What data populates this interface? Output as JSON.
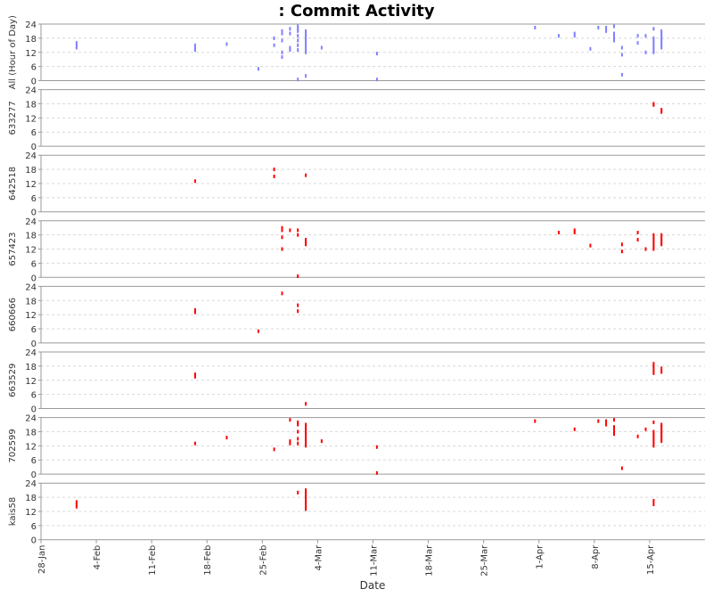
{
  "chart_data": {
    "type": "scatter",
    "title": ": Commit Activity",
    "xlabel": "Date",
    "ylim": [
      0,
      24
    ],
    "y_ticks": [
      0,
      6,
      12,
      18,
      24
    ],
    "x_range": [
      "2013-01-28",
      "2013-04-22"
    ],
    "x_ticks": [
      "28-Jan",
      "4-Feb",
      "11-Feb",
      "18-Feb",
      "25-Feb",
      "4-Mar",
      "11-Mar",
      "18-Mar",
      "25-Mar",
      "1-Apr",
      "8-Apr",
      "15-Apr"
    ],
    "grid": true,
    "series": [
      {
        "name": "All (Hour of Day)",
        "color": "#8080ff",
        "points": [
          [
            "2013-02-01",
            15
          ],
          [
            "2013-02-01",
            14
          ],
          [
            "2013-02-01",
            16
          ],
          [
            "2013-02-16",
            13
          ],
          [
            "2013-02-16",
            14
          ],
          [
            "2013-02-16",
            15
          ],
          [
            "2013-02-20",
            15.5
          ],
          [
            "2013-02-24",
            5
          ],
          [
            "2013-02-26",
            15
          ],
          [
            "2013-02-26",
            18
          ],
          [
            "2013-02-27",
            10
          ],
          [
            "2013-02-27",
            12
          ],
          [
            "2013-02-27",
            17
          ],
          [
            "2013-02-27",
            20
          ],
          [
            "2013-02-27",
            21
          ],
          [
            "2013-02-28",
            13
          ],
          [
            "2013-02-28",
            14
          ],
          [
            "2013-02-28",
            20
          ],
          [
            "2013-02-28",
            22
          ],
          [
            "2013-03-01",
            0.5
          ],
          [
            "2013-03-01",
            13
          ],
          [
            "2013-03-01",
            15
          ],
          [
            "2013-03-01",
            17
          ],
          [
            "2013-03-01",
            19
          ],
          [
            "2013-03-01",
            21
          ],
          [
            "2013-03-01",
            22
          ],
          [
            "2013-03-01",
            23
          ],
          [
            "2013-03-02",
            2
          ],
          [
            "2013-03-02",
            12
          ],
          [
            "2013-03-02",
            13
          ],
          [
            "2013-03-02",
            14
          ],
          [
            "2013-03-02",
            15
          ],
          [
            "2013-03-02",
            16
          ],
          [
            "2013-03-02",
            17
          ],
          [
            "2013-03-02",
            18
          ],
          [
            "2013-03-02",
            19
          ],
          [
            "2013-03-02",
            20
          ],
          [
            "2013-03-02",
            21
          ],
          [
            "2013-03-04",
            14
          ],
          [
            "2013-03-11",
            11.5
          ],
          [
            "2013-03-11",
            0.5
          ],
          [
            "2013-03-31",
            22.5
          ],
          [
            "2013-04-03",
            19
          ],
          [
            "2013-04-05",
            19
          ],
          [
            "2013-04-05",
            20
          ],
          [
            "2013-04-07",
            13.5
          ],
          [
            "2013-04-08",
            22.5
          ],
          [
            "2013-04-09",
            21
          ],
          [
            "2013-04-09",
            22.5
          ],
          [
            "2013-04-10",
            17
          ],
          [
            "2013-04-10",
            18
          ],
          [
            "2013-04-10",
            19
          ],
          [
            "2013-04-10",
            20
          ],
          [
            "2013-04-10",
            23
          ],
          [
            "2013-04-11",
            2.5
          ],
          [
            "2013-04-11",
            11
          ],
          [
            "2013-04-11",
            14
          ],
          [
            "2013-04-13",
            16
          ],
          [
            "2013-04-13",
            19
          ],
          [
            "2013-04-14",
            12
          ],
          [
            "2013-04-14",
            19
          ],
          [
            "2013-04-15",
            12
          ],
          [
            "2013-04-15",
            13
          ],
          [
            "2013-04-15",
            14
          ],
          [
            "2013-04-15",
            15
          ],
          [
            "2013-04-15",
            16
          ],
          [
            "2013-04-15",
            17
          ],
          [
            "2013-04-15",
            18
          ],
          [
            "2013-04-15",
            22
          ],
          [
            "2013-04-16",
            14
          ],
          [
            "2013-04-16",
            15
          ],
          [
            "2013-04-16",
            16
          ],
          [
            "2013-04-16",
            17
          ],
          [
            "2013-04-16",
            18
          ],
          [
            "2013-04-16",
            19
          ],
          [
            "2013-04-16",
            20
          ],
          [
            "2013-04-16",
            21
          ]
        ]
      },
      {
        "name": "633277",
        "color": "#ff0000",
        "points": [
          [
            "2013-04-15",
            18
          ],
          [
            "2013-04-15",
            17.5
          ],
          [
            "2013-04-16",
            15.5
          ],
          [
            "2013-04-16",
            14.5
          ]
        ]
      },
      {
        "name": "642518",
        "color": "#ff0000",
        "points": [
          [
            "2013-02-16",
            13
          ],
          [
            "2013-02-26",
            18
          ],
          [
            "2013-02-26",
            15
          ],
          [
            "2013-03-02",
            15.5
          ]
        ]
      },
      {
        "name": "657423",
        "color": "#ff0000",
        "points": [
          [
            "2013-02-27",
            12
          ],
          [
            "2013-02-27",
            17
          ],
          [
            "2013-02-27",
            20
          ],
          [
            "2013-02-27",
            21
          ],
          [
            "2013-02-28",
            20
          ],
          [
            "2013-03-01",
            0.5
          ],
          [
            "2013-03-01",
            18
          ],
          [
            "2013-03-01",
            20
          ],
          [
            "2013-03-02",
            14
          ],
          [
            "2013-03-02",
            15
          ],
          [
            "2013-03-02",
            16
          ],
          [
            "2013-04-03",
            19
          ],
          [
            "2013-04-05",
            19
          ],
          [
            "2013-04-05",
            20
          ],
          [
            "2013-04-07",
            13.5
          ],
          [
            "2013-04-11",
            11
          ],
          [
            "2013-04-11",
            14
          ],
          [
            "2013-04-13",
            16
          ],
          [
            "2013-04-13",
            19
          ],
          [
            "2013-04-14",
            12
          ],
          [
            "2013-04-15",
            12
          ],
          [
            "2013-04-15",
            13
          ],
          [
            "2013-04-15",
            14
          ],
          [
            "2013-04-15",
            15
          ],
          [
            "2013-04-15",
            16
          ],
          [
            "2013-04-15",
            17
          ],
          [
            "2013-04-15",
            18
          ],
          [
            "2013-04-16",
            14
          ],
          [
            "2013-04-16",
            15
          ],
          [
            "2013-04-16",
            16
          ],
          [
            "2013-04-16",
            17
          ],
          [
            "2013-04-16",
            18
          ]
        ]
      },
      {
        "name": "660666",
        "color": "#ff0000",
        "points": [
          [
            "2013-02-16",
            13
          ],
          [
            "2013-02-16",
            14
          ],
          [
            "2013-02-24",
            5
          ],
          [
            "2013-02-27",
            21
          ],
          [
            "2013-03-01",
            13.5
          ],
          [
            "2013-03-01",
            16
          ]
        ]
      },
      {
        "name": "663529",
        "color": "#ff0000",
        "points": [
          [
            "2013-02-16",
            13.5
          ],
          [
            "2013-02-16",
            14.5
          ],
          [
            "2013-03-02",
            2
          ],
          [
            "2013-04-15",
            15
          ],
          [
            "2013-04-15",
            16
          ],
          [
            "2013-04-15",
            17
          ],
          [
            "2013-04-15",
            18
          ],
          [
            "2013-04-15",
            19
          ],
          [
            "2013-04-16",
            15.5
          ],
          [
            "2013-04-16",
            17
          ]
        ]
      },
      {
        "name": "702599",
        "color": "#ff0000",
        "points": [
          [
            "2013-02-16",
            13
          ],
          [
            "2013-02-20",
            15.5
          ],
          [
            "2013-02-26",
            10.5
          ],
          [
            "2013-02-28",
            13
          ],
          [
            "2013-02-28",
            14
          ],
          [
            "2013-02-28",
            23
          ],
          [
            "2013-03-01",
            13
          ],
          [
            "2013-03-01",
            15
          ],
          [
            "2013-03-01",
            18
          ],
          [
            "2013-03-01",
            21
          ],
          [
            "2013-03-01",
            22
          ],
          [
            "2013-03-02",
            12
          ],
          [
            "2013-03-02",
            13
          ],
          [
            "2013-03-02",
            14
          ],
          [
            "2013-03-02",
            15
          ],
          [
            "2013-03-02",
            16
          ],
          [
            "2013-03-02",
            17
          ],
          [
            "2013-03-02",
            18
          ],
          [
            "2013-03-02",
            19
          ],
          [
            "2013-03-02",
            20
          ],
          [
            "2013-03-02",
            21
          ],
          [
            "2013-03-04",
            14
          ],
          [
            "2013-03-11",
            11.5
          ],
          [
            "2013-03-11",
            0.5
          ],
          [
            "2013-03-31",
            22.5
          ],
          [
            "2013-04-05",
            19
          ],
          [
            "2013-04-08",
            22.5
          ],
          [
            "2013-04-09",
            21
          ],
          [
            "2013-04-09",
            22.5
          ],
          [
            "2013-04-10",
            17
          ],
          [
            "2013-04-10",
            18
          ],
          [
            "2013-04-10",
            19
          ],
          [
            "2013-04-10",
            20
          ],
          [
            "2013-04-10",
            23
          ],
          [
            "2013-04-11",
            2.5
          ],
          [
            "2013-04-13",
            16
          ],
          [
            "2013-04-14",
            19
          ],
          [
            "2013-04-15",
            12
          ],
          [
            "2013-04-15",
            13
          ],
          [
            "2013-04-15",
            14
          ],
          [
            "2013-04-15",
            15
          ],
          [
            "2013-04-15",
            16
          ],
          [
            "2013-04-15",
            17
          ],
          [
            "2013-04-15",
            18
          ],
          [
            "2013-04-15",
            22
          ],
          [
            "2013-04-16",
            14
          ],
          [
            "2013-04-16",
            15
          ],
          [
            "2013-04-16",
            16
          ],
          [
            "2013-04-16",
            17
          ],
          [
            "2013-04-16",
            18
          ],
          [
            "2013-04-16",
            19
          ],
          [
            "2013-04-16",
            20
          ],
          [
            "2013-04-16",
            21
          ]
        ]
      },
      {
        "name": "kais58",
        "color": "#ff0000",
        "points": [
          [
            "2013-02-01",
            14
          ],
          [
            "2013-02-01",
            15
          ],
          [
            "2013-02-01",
            16
          ],
          [
            "2013-03-01",
            20
          ],
          [
            "2013-03-02",
            13
          ],
          [
            "2013-03-02",
            14
          ],
          [
            "2013-03-02",
            15
          ],
          [
            "2013-03-02",
            16
          ],
          [
            "2013-03-02",
            17
          ],
          [
            "2013-03-02",
            18
          ],
          [
            "2013-03-02",
            19
          ],
          [
            "2013-03-02",
            20
          ],
          [
            "2013-03-02",
            21
          ],
          [
            "2013-04-15",
            15
          ],
          [
            "2013-04-15",
            16.5
          ]
        ]
      }
    ]
  }
}
